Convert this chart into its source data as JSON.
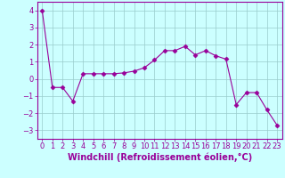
{
  "x": [
    0,
    1,
    2,
    3,
    4,
    5,
    6,
    7,
    8,
    9,
    10,
    11,
    12,
    13,
    14,
    15,
    16,
    17,
    18,
    19,
    20,
    21,
    22,
    23
  ],
  "y": [
    4.0,
    -0.5,
    -0.5,
    -1.3,
    0.3,
    0.3,
    0.3,
    0.3,
    0.35,
    0.45,
    0.65,
    1.1,
    1.65,
    1.65,
    1.9,
    1.4,
    1.65,
    1.35,
    1.15,
    -1.5,
    -0.8,
    -0.8,
    -1.8,
    -2.7
  ],
  "line_color": "#990099",
  "marker": "D",
  "marker_size": 2.5,
  "bg_color": "#ccffff",
  "grid_color": "#99cccc",
  "xlabel": "Windchill (Refroidissement éolien,°C)",
  "xlabel_color": "#990099",
  "xlabel_fontsize": 7,
  "tick_color": "#990099",
  "tick_fontsize": 6,
  "ylim": [
    -3.5,
    4.5
  ],
  "xlim": [
    -0.5,
    23.5
  ],
  "yticks": [
    -3,
    -2,
    -1,
    0,
    1,
    2,
    3,
    4
  ],
  "xticks": [
    0,
    1,
    2,
    3,
    4,
    5,
    6,
    7,
    8,
    9,
    10,
    11,
    12,
    13,
    14,
    15,
    16,
    17,
    18,
    19,
    20,
    21,
    22,
    23
  ]
}
